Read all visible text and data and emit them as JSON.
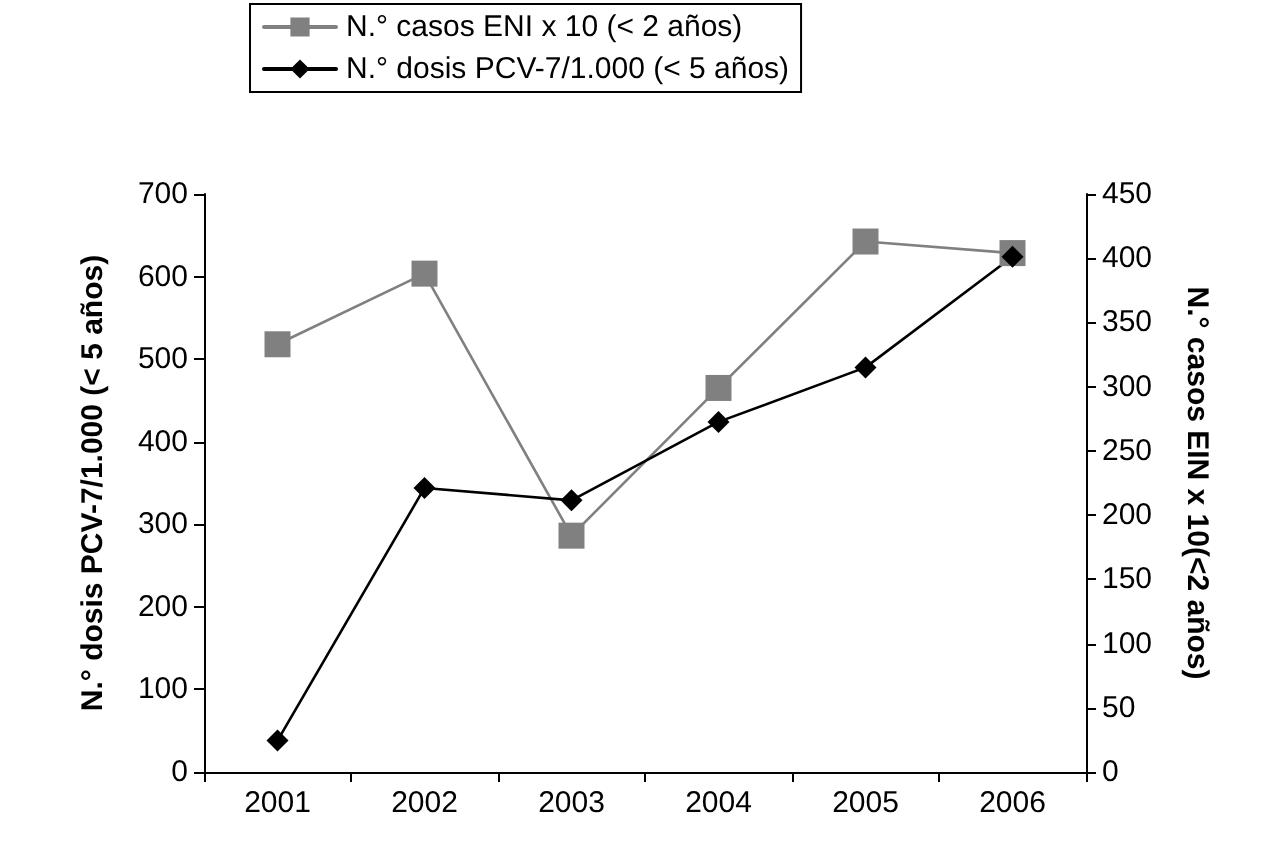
{
  "chart_data": {
    "type": "line",
    "categories": [
      "2001",
      "2002",
      "2003",
      "2004",
      "2005",
      "2006"
    ],
    "ylabel": "N.° dosis PCV-7/1.000 (< 5 años)",
    "y2label": "N.° casos EIN x 10(<2 años)",
    "series": [
      {
        "name": "N.° casos ENI x 10 (< 2 años)",
        "color": "#808080",
        "marker": "square",
        "axis": "y2",
        "values": [
          333,
          388,
          184,
          299,
          413,
          404
        ]
      },
      {
        "name": "N.° dosis PCV-7/1.000 (< 5 años)",
        "color": "#000000",
        "marker": "diamond",
        "values": [
          38,
          344,
          329,
          424,
          490,
          624
        ]
      }
    ],
    "ylim": [
      0,
      700
    ],
    "yticks": [
      0,
      100,
      200,
      300,
      400,
      500,
      600,
      700
    ],
    "y2lim": [
      0,
      450
    ],
    "y2ticks": [
      0,
      50,
      100,
      150,
      200,
      250,
      300,
      350,
      400,
      450
    ],
    "grid": false,
    "legend": "top",
    "line_style": "solid"
  }
}
